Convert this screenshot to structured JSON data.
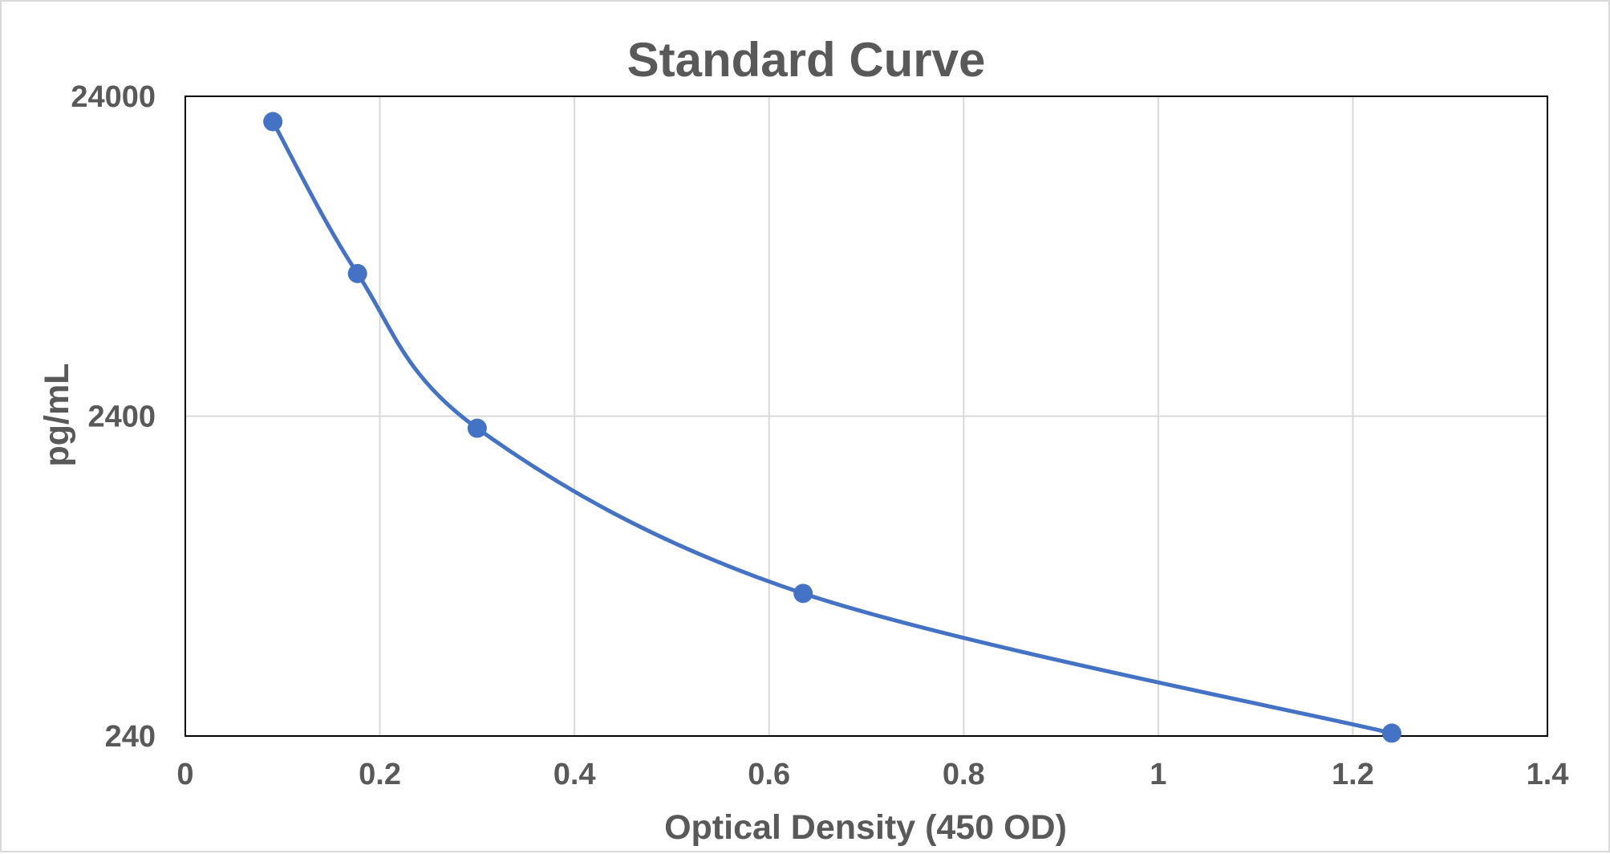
{
  "chart_data": {
    "type": "scatter",
    "title": "Standard Curve",
    "xlabel": "Optical Density (450 OD)",
    "ylabel": "pg/mL",
    "xlim": [
      0,
      1.4
    ],
    "ylim": [
      240,
      24000
    ],
    "yscale": "log",
    "x_ticks": [
      {
        "value": 0,
        "label": "0"
      },
      {
        "value": 0.2,
        "label": "0.2"
      },
      {
        "value": 0.4,
        "label": "0.4"
      },
      {
        "value": 0.6,
        "label": "0.6"
      },
      {
        "value": 0.8,
        "label": "0.8"
      },
      {
        "value": 1.0,
        "label": "1"
      },
      {
        "value": 1.2,
        "label": "1.2"
      },
      {
        "value": 1.4,
        "label": "1.4"
      }
    ],
    "y_ticks": [
      {
        "value": 240,
        "label": "240"
      },
      {
        "value": 2400,
        "label": "2400"
      },
      {
        "value": 24000,
        "label": "24000"
      }
    ],
    "grid": true,
    "line": "smooth",
    "series": [
      {
        "x": [
          0.09,
          0.177,
          0.3,
          0.635,
          1.24
        ],
        "y": [
          20000,
          6700,
          2200,
          670,
          245
        ],
        "color": "#4472c4"
      }
    ],
    "colors": {
      "series": "#4472c4",
      "gridline": "#d9d9d9",
      "text": "#595959",
      "plot_border": "#000000"
    }
  }
}
